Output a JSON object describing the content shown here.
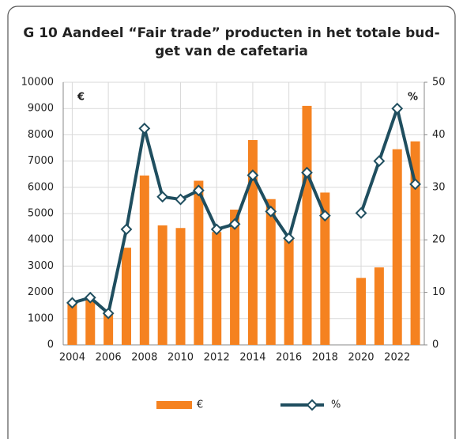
{
  "chart_data": {
    "type": "bar",
    "title": [
      "G 10 Aandeel “Fair trade” producten in het totale bud-",
      "get van de cafetaria"
    ],
    "x": [
      2004,
      2005,
      2006,
      2007,
      2008,
      2009,
      2010,
      2011,
      2012,
      2013,
      2014,
      2015,
      2016,
      2017,
      2018,
      2019,
      2020,
      2021,
      2022,
      2023
    ],
    "series": [
      {
        "name": "€",
        "type": "bar",
        "color": "#f58220",
        "values": [
          1600,
          1700,
          1200,
          3700,
          6450,
          4550,
          4450,
          6250,
          4300,
          5150,
          7800,
          5550,
          4100,
          9100,
          5800,
          null,
          2550,
          2950,
          7450,
          7750
        ]
      },
      {
        "name": "%",
        "type": "line",
        "axis": "y2",
        "color": "#1f4e5f",
        "values": [
          8,
          9,
          6,
          22,
          41.2,
          28.2,
          27.7,
          29.4,
          22,
          23,
          32.3,
          25.4,
          20.3,
          32.8,
          24.6,
          null,
          25.1,
          35,
          45,
          30.6
        ]
      }
    ],
    "annotations": [
      "€",
      "%"
    ],
    "xlim": [
      2003.5,
      2023.5
    ],
    "xticks": [
      2004,
      2006,
      2008,
      2010,
      2012,
      2014,
      2016,
      2018,
      2020,
      2022
    ],
    "ylim": [
      0,
      10000
    ],
    "yticks": [
      0,
      1000,
      2000,
      3000,
      4000,
      5000,
      6000,
      7000,
      8000,
      9000,
      10000
    ],
    "y2lim": [
      0,
      50
    ],
    "y2ticks": [
      0,
      10,
      20,
      30,
      40,
      50
    ],
    "grid": true,
    "legend": "bottom"
  }
}
